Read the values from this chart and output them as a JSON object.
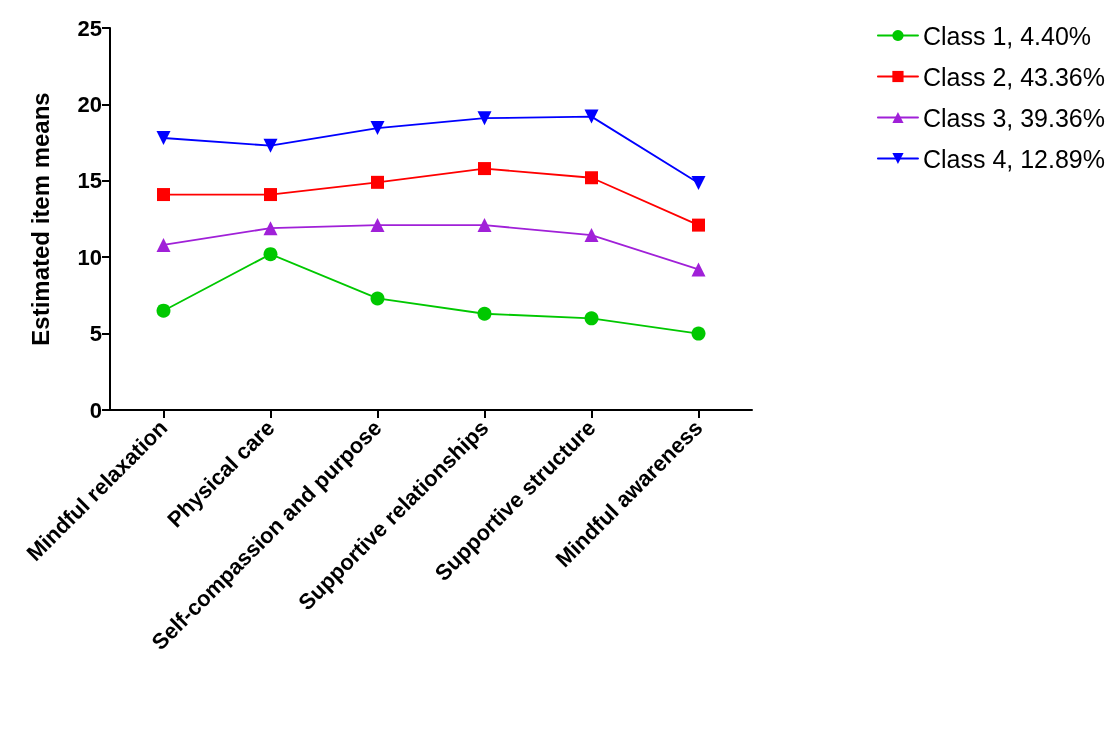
{
  "chart_data": {
    "type": "line",
    "ylabel": "Estimated item means",
    "categories": [
      "Mindful relaxation",
      "Physical care",
      "Self-compassion and purpose",
      "Supportive relationships",
      "Supportive structure",
      "Mindful awareness"
    ],
    "series": [
      {
        "name": "Class 1, 4.40%",
        "color": "#00c800",
        "marker": "circle",
        "values": [
          6.5,
          10.2,
          7.3,
          6.3,
          6.0,
          5.0
        ]
      },
      {
        "name": "Class 2, 43.36%",
        "color": "#ff0000",
        "marker": "square",
        "values": [
          14.1,
          14.1,
          14.9,
          15.8,
          15.2,
          12.1
        ]
      },
      {
        "name": "Class 3, 39.36%",
        "color": "#a020d8",
        "marker": "triangle",
        "values": [
          10.8,
          11.9,
          12.1,
          12.1,
          11.45,
          9.2
        ]
      },
      {
        "name": "Class 4, 12.89%",
        "color": "#0000ff",
        "marker": "triangle-down",
        "values": [
          17.8,
          17.3,
          18.45,
          19.1,
          19.2,
          14.86
        ]
      }
    ],
    "ylim": [
      0,
      25
    ],
    "yticks": [
      0,
      5,
      10,
      15,
      20,
      25
    ],
    "grid": false,
    "legend": "top right",
    "line_style": "solid"
  }
}
